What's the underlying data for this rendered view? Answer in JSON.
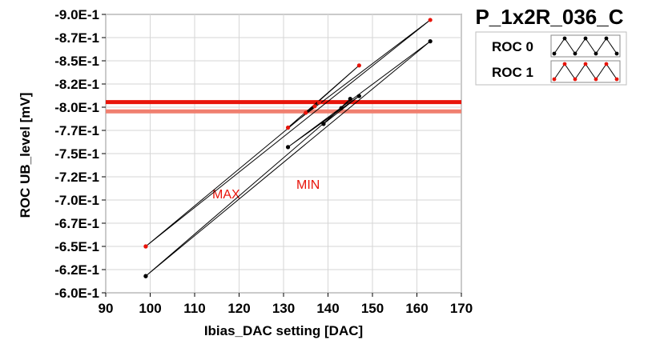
{
  "chart_data": {
    "type": "line",
    "title": "P_1x2R_036_C",
    "xlabel": "Ibias_DAC setting [DAC]",
    "ylabel": "ROC UB_level [mV]",
    "xlim": [
      90,
      170
    ],
    "ylim": [
      -0.9,
      -0.6
    ],
    "x_ticks": [
      90,
      100,
      110,
      120,
      130,
      140,
      150,
      160,
      170
    ],
    "x_tick_labels": [
      "90",
      "100",
      "110",
      "120",
      "130",
      "140",
      "150",
      "160",
      "170"
    ],
    "y_ticks": [
      -0.6,
      -0.625,
      -0.65,
      -0.675,
      -0.7,
      -0.725,
      -0.75,
      -0.775,
      -0.8,
      -0.825,
      -0.85,
      -0.875,
      -0.9
    ],
    "y_tick_labels": [
      "-6.0E-1",
      "-6.2E-1",
      "-6.5E-1",
      "-6.7E-1",
      "-7.0E-1",
      "-7.2E-1",
      "-7.5E-1",
      "-7.7E-1",
      "-8.0E-1",
      "-8.2E-1",
      "-8.5E-1",
      "-8.7E-1",
      "-9.0E-1"
    ],
    "grid": true,
    "legend_position": "top-right",
    "series": [
      {
        "name": "ROC 0",
        "color": "#000000",
        "x": [
          99,
          163,
          131,
          147,
          139,
          145,
          143,
          99
        ],
        "y": [
          -0.618,
          -0.871,
          -0.757,
          -0.812,
          -0.782,
          -0.809,
          -0.799,
          -0.618
        ]
      },
      {
        "name": "ROC 1",
        "color": "#e8140a",
        "x": [
          99,
          163,
          131,
          147,
          135,
          138,
          137,
          99
        ],
        "y": [
          -0.65,
          -0.894,
          -0.778,
          -0.845,
          -0.794,
          -0.805,
          -0.801,
          -0.65
        ]
      }
    ],
    "reference_lines": [
      {
        "label": "MAX",
        "y": -0.7955,
        "color": "#e8140a"
      },
      {
        "label": "MIN",
        "y": -0.8055,
        "color": "#e8140a"
      }
    ]
  }
}
